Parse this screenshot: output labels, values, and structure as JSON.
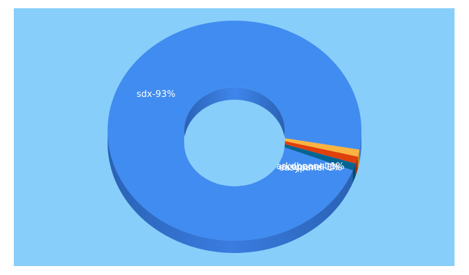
{
  "chart_data": {
    "type": "pie",
    "subtype": "donut-3d",
    "categories": [
      "sdx",
      "arkdbpanel",
      "acepanel",
      "easypanel"
    ],
    "values": [
      93,
      1,
      1,
      1
    ],
    "labels": [
      "sdx-93%",
      "arkdbpanel-1%",
      "acepanel-1%",
      "easypanel-1%"
    ],
    "colors": [
      "#418CF0",
      "#FCB441",
      "#E0400A",
      "#056492"
    ],
    "background": "#87CEFA"
  }
}
